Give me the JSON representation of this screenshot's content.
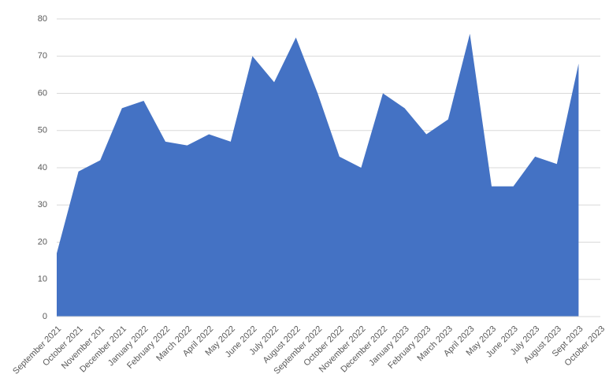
{
  "chart_data": {
    "type": "area",
    "categories": [
      "September 2021",
      "October 2021",
      "November 201",
      "December 2021",
      "January 2022",
      "February 2022",
      "March 2022",
      "April 2022",
      "May 2022",
      "June 2022",
      "July 2022",
      "August 2022",
      "September 2022",
      "October 2022",
      "November 2022",
      "December 2022",
      "January 2023",
      "February 2023",
      "March 2023",
      "April 2023",
      "May 2023",
      "June 2023",
      "July 2023",
      "August 2023",
      "Sept 2023",
      "October 2023"
    ],
    "values": [
      17,
      39,
      42,
      56,
      58,
      47,
      46,
      49,
      47,
      70,
      63,
      75,
      60,
      43,
      40,
      60,
      56,
      49,
      53,
      76,
      35,
      35,
      43,
      41,
      68,
      null
    ],
    "color": "#4472c4",
    "ylim": [
      0,
      80
    ],
    "yticks": [
      0,
      10,
      20,
      30,
      40,
      50,
      60,
      70,
      80
    ],
    "grid": true
  }
}
